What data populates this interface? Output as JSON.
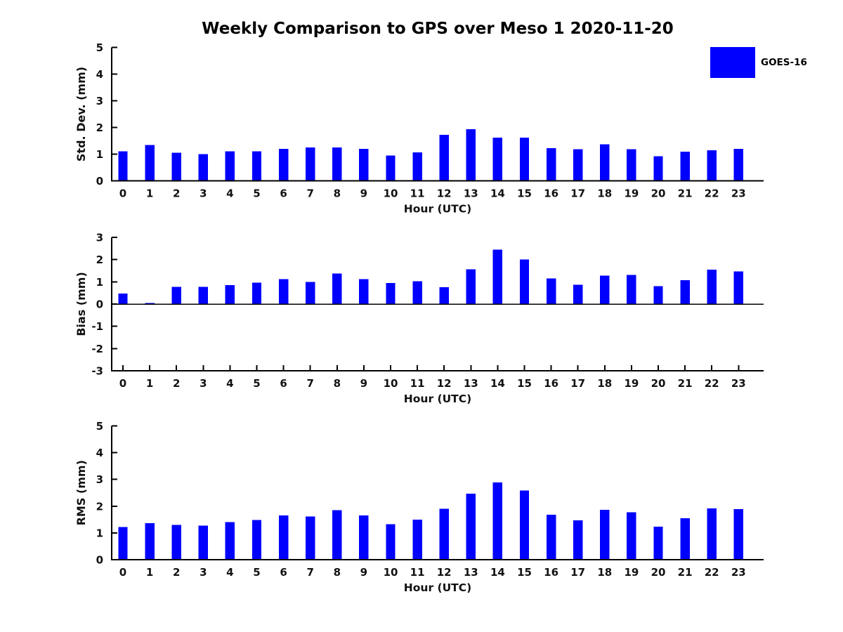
{
  "figure": {
    "title": "Weekly Comparison to GPS over Meso 1 2020-11-20",
    "background_color": "#ffffff",
    "text_color": "#111111",
    "axis_color": "#000000",
    "bar_color": "#0000ff"
  },
  "legend": {
    "label": "GOES-16",
    "swatch_color": "#0000ff",
    "position": "upper right outside plot"
  },
  "chart_data": [
    {
      "type": "bar",
      "panel": "std-dev",
      "title": "",
      "xlabel": "Hour (UTC)",
      "ylabel": "Std. Dev. (mm)",
      "ylim": [
        0,
        5
      ],
      "yticks": [
        0,
        1,
        2,
        3,
        4,
        5
      ],
      "grid": false,
      "zero_line": false,
      "categories": [
        "0",
        "1",
        "2",
        "3",
        "4",
        "5",
        "6",
        "7",
        "8",
        "9",
        "10",
        "11",
        "12",
        "13",
        "14",
        "15",
        "16",
        "17",
        "18",
        "19",
        "20",
        "21",
        "22",
        "23"
      ],
      "series": [
        {
          "name": "GOES-16",
          "values": [
            1.1,
            1.34,
            1.05,
            1.0,
            1.1,
            1.1,
            1.2,
            1.25,
            1.25,
            1.2,
            0.95,
            1.07,
            1.72,
            1.93,
            1.62,
            1.62,
            1.22,
            1.19,
            1.37,
            1.19,
            0.92,
            1.09,
            1.14,
            1.2
          ]
        }
      ]
    },
    {
      "type": "bar",
      "panel": "bias",
      "title": "",
      "xlabel": "Hour (UTC)",
      "ylabel": "Bias (mm)",
      "ylim": [
        -3,
        3
      ],
      "yticks": [
        -3,
        -2,
        -1,
        0,
        1,
        2,
        3
      ],
      "grid": false,
      "zero_line": true,
      "categories": [
        "0",
        "1",
        "2",
        "3",
        "4",
        "5",
        "6",
        "7",
        "8",
        "9",
        "10",
        "11",
        "12",
        "13",
        "14",
        "15",
        "16",
        "17",
        "18",
        "19",
        "20",
        "21",
        "22",
        "23"
      ],
      "series": [
        {
          "name": "GOES-16",
          "values": [
            0.48,
            0.04,
            0.78,
            0.78,
            0.85,
            0.97,
            1.12,
            1.0,
            1.38,
            1.12,
            0.95,
            1.03,
            0.76,
            1.57,
            2.45,
            2.0,
            1.15,
            0.87,
            1.28,
            1.31,
            0.81,
            1.08,
            1.54,
            1.47
          ]
        }
      ]
    },
    {
      "type": "bar",
      "panel": "rms",
      "title": "",
      "xlabel": "Hour (UTC)",
      "ylabel": "RMS (mm)",
      "ylim": [
        0,
        5
      ],
      "yticks": [
        0,
        1,
        2,
        3,
        4,
        5
      ],
      "grid": false,
      "zero_line": false,
      "categories": [
        "0",
        "1",
        "2",
        "3",
        "4",
        "5",
        "6",
        "7",
        "8",
        "9",
        "10",
        "11",
        "12",
        "13",
        "14",
        "15",
        "16",
        "17",
        "18",
        "19",
        "20",
        "21",
        "22",
        "23"
      ],
      "series": [
        {
          "name": "GOES-16",
          "values": [
            1.22,
            1.36,
            1.3,
            1.27,
            1.41,
            1.48,
            1.66,
            1.61,
            1.85,
            1.66,
            1.33,
            1.5,
            1.9,
            2.47,
            2.89,
            2.59,
            1.68,
            1.47,
            1.86,
            1.77,
            1.23,
            1.55,
            1.91,
            1.89
          ]
        }
      ]
    }
  ]
}
